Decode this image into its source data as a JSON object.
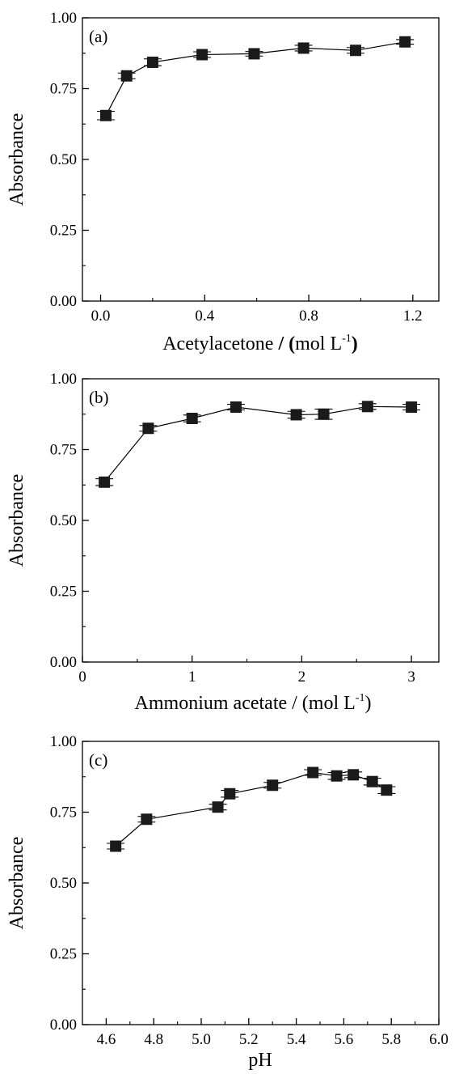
{
  "chart_data": [
    {
      "type": "line",
      "panel_label": "(a)",
      "xlabel_parts": {
        "main": "Acetylacetone ",
        "bold_slash": "/",
        "space": " ",
        "bold_open": "(",
        "unit": "mol L",
        "sup": "-1",
        "bold_close": ")"
      },
      "ylabel": "Absorbance",
      "xlim": [
        -0.07,
        1.3
      ],
      "ylim": [
        0,
        1
      ],
      "xticks": [
        0.0,
        0.4,
        0.8,
        1.2
      ],
      "xtick_labels": [
        "0.0",
        "0.4",
        "0.8",
        "1.2"
      ],
      "yticks": [
        0,
        0.25,
        0.5,
        0.75,
        1.0
      ],
      "ytick_labels": [
        "0.00",
        "0.25",
        "0.50",
        "0.75",
        "1.00"
      ],
      "series": [
        {
          "x": [
            0.02,
            0.1,
            0.2,
            0.39,
            0.59,
            0.78,
            0.98,
            1.17
          ],
          "y": [
            0.655,
            0.795,
            0.843,
            0.87,
            0.873,
            0.893,
            0.885,
            0.915
          ],
          "err": [
            0.015,
            0.01,
            0.012,
            0.01,
            0.008,
            0.01,
            0.01,
            0.008
          ]
        }
      ]
    },
    {
      "type": "line",
      "panel_label": "(b)",
      "xlabel_parts": {
        "main": "Ammonium acetate / (mol L",
        "sup": "-1",
        "close": ")"
      },
      "ylabel": "Absorbance",
      "xlim": [
        0,
        3.25
      ],
      "ylim": [
        0,
        1
      ],
      "xticks": [
        0,
        1,
        2,
        3
      ],
      "xtick_labels": [
        "0",
        "1",
        "2",
        "3"
      ],
      "yticks": [
        0,
        0.25,
        0.5,
        0.75,
        1.0
      ],
      "ytick_labels": [
        "0.00",
        "0.25",
        "0.50",
        "0.75",
        "1.00"
      ],
      "series": [
        {
          "x": [
            0.2,
            0.6,
            1.0,
            1.4,
            1.95,
            2.2,
            2.6,
            3.0
          ],
          "y": [
            0.635,
            0.825,
            0.86,
            0.9,
            0.873,
            0.875,
            0.902,
            0.9
          ],
          "err": [
            0.012,
            0.01,
            0.012,
            0.01,
            0.012,
            0.018,
            0.01,
            0.01
          ]
        }
      ]
    },
    {
      "type": "line",
      "panel_label": "(c)",
      "xlabel_parts": {
        "main": "pH"
      },
      "ylabel": "Absorbance",
      "xlim": [
        4.5,
        6.0
      ],
      "ylim": [
        0,
        1
      ],
      "xticks": [
        4.6,
        4.8,
        5.0,
        5.2,
        5.4,
        5.6,
        5.8,
        6.0
      ],
      "xtick_labels": [
        "4.6",
        "4.8",
        "5.0",
        "5.2",
        "5.4",
        "5.6",
        "5.8",
        "6.0"
      ],
      "yticks": [
        0,
        0.25,
        0.5,
        0.75,
        1.0
      ],
      "ytick_labels": [
        "0.00",
        "0.25",
        "0.50",
        "0.75",
        "1.00"
      ],
      "series": [
        {
          "x": [
            4.64,
            4.77,
            5.07,
            5.12,
            5.3,
            5.47,
            5.57,
            5.64,
            5.72,
            5.78
          ],
          "y": [
            0.63,
            0.725,
            0.768,
            0.815,
            0.845,
            0.89,
            0.878,
            0.882,
            0.858,
            0.828
          ],
          "err": [
            0.01,
            0.01,
            0.01,
            0.012,
            0.01,
            0.01,
            0.012,
            0.01,
            0.012,
            0.012
          ]
        }
      ]
    }
  ]
}
